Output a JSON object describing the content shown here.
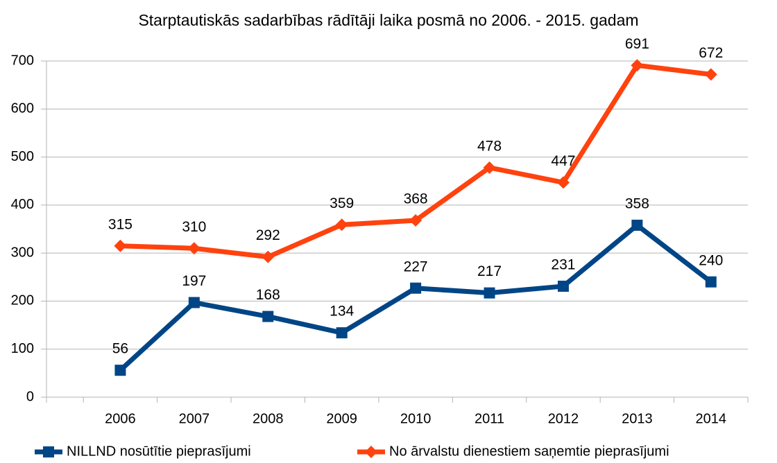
{
  "chart_data": {
    "type": "line",
    "title": "Starptautiskās sadarbības rādītāji laika posmā no 2006. - 2015. gadam",
    "categories": [
      "2006",
      "2007",
      "2008",
      "2009",
      "2010",
      "2011",
      "2012",
      "2013",
      "2014"
    ],
    "series": [
      {
        "name": "NILLND nosūtītie pieprasījumi",
        "color": "#004586",
        "marker": "square",
        "values": [
          56,
          197,
          168,
          134,
          227,
          217,
          231,
          358,
          240
        ]
      },
      {
        "name": "No ārvalstu dienestiem saņemtie pieprasījumi",
        "color": "#ff420e",
        "marker": "diamond",
        "values": [
          315,
          310,
          292,
          359,
          368,
          478,
          447,
          691,
          672
        ]
      }
    ],
    "ylim": [
      0,
      700
    ],
    "yticks": [
      0,
      100,
      200,
      300,
      400,
      500,
      600,
      700
    ],
    "grid": true,
    "legend": "bottom"
  }
}
